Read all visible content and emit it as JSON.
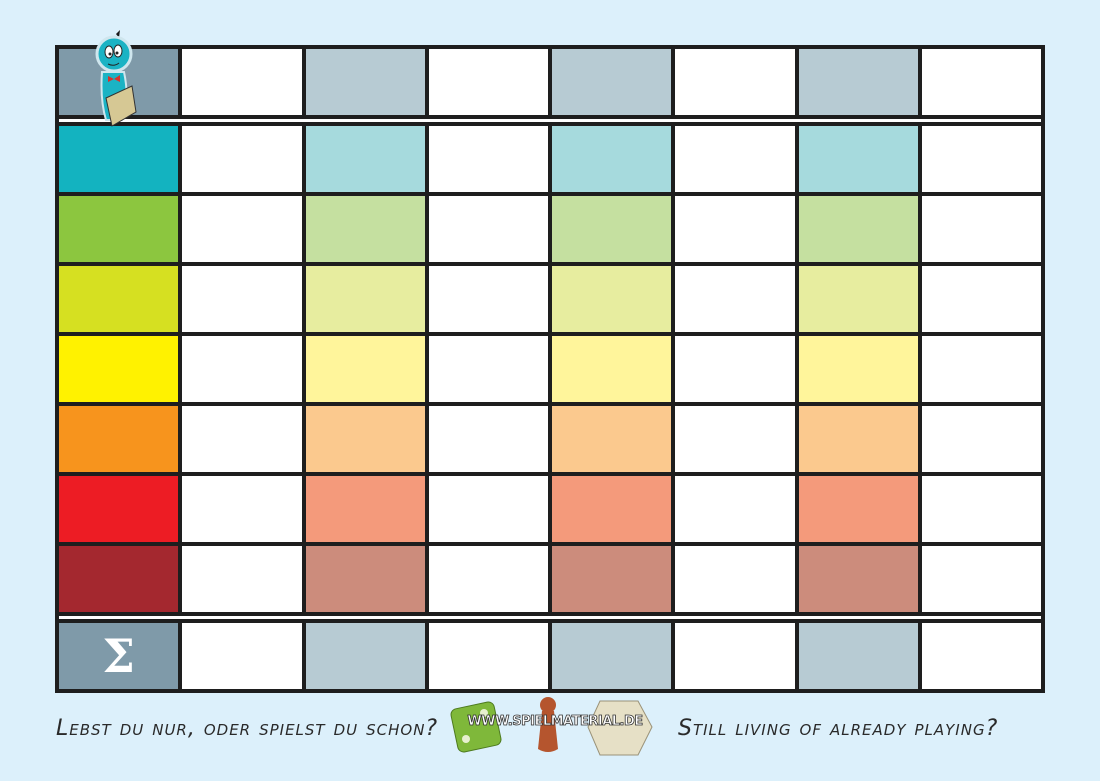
{
  "header_col_color": "#7f9aa9",
  "shaded_col_color": "#b7cbd3",
  "rows": [
    {
      "name": "teal",
      "color": "#13b3c0",
      "light": "#a6dadd"
    },
    {
      "name": "green",
      "color": "#8cc63f",
      "light": "#c5e0a0"
    },
    {
      "name": "lime",
      "color": "#d6e021",
      "light": "#e7ed9f"
    },
    {
      "name": "yellow",
      "color": "#fff200",
      "light": "#fff59b"
    },
    {
      "name": "orange",
      "color": "#f7941d",
      "light": "#fbc98e"
    },
    {
      "name": "red",
      "color": "#ed1c24",
      "light": "#f49a7b"
    },
    {
      "name": "dark-red",
      "color": "#a4282f",
      "light": "#cc8c7c"
    }
  ],
  "sum_symbol": "Σ",
  "footer": {
    "left_text": "Lebst du nur, oder spielst du schon?",
    "logo_text": "WWW.SPIELMATERIAL.DE",
    "right_text": "Still living of already playing?"
  }
}
